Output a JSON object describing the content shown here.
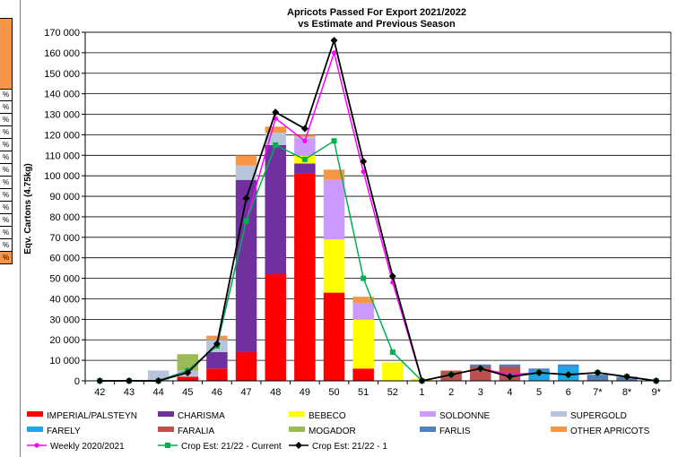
{
  "chart_data": {
    "type": "bar",
    "title": "Apricots Passed For Export 2021/2022",
    "subtitle": "vs Estimate and Previous Season",
    "ylabel": "Eqv. Cartons (4.75kg)",
    "xlabel": "",
    "ylim": [
      0,
      170000
    ],
    "ytick_step": 10000,
    "yticks": [
      "0",
      "10 000",
      "20 000",
      "30 000",
      "40 000",
      "50 000",
      "60 000",
      "70 000",
      "80 000",
      "90 000",
      "100 000",
      "110 000",
      "120 000",
      "130 000",
      "140 000",
      "150 000",
      "160 000",
      "170 000"
    ],
    "grid": true,
    "legend_position": "bottom",
    "categories": [
      "42",
      "43",
      "44",
      "45",
      "46",
      "47",
      "48",
      "49",
      "50",
      "51",
      "52",
      "1",
      "2",
      "3",
      "4",
      "5",
      "6",
      "7*",
      "8*",
      "9*"
    ],
    "stacked_series": [
      {
        "name": "IMPERIAL/PALSTEYN",
        "color": "#ff0000",
        "values": [
          0,
          0,
          0,
          2000,
          6000,
          14000,
          52000,
          101000,
          43000,
          6000,
          0,
          0,
          0,
          0,
          0,
          0,
          0,
          0,
          0,
          0
        ]
      },
      {
        "name": "CHARISMA",
        "color": "#7030a0",
        "values": [
          0,
          0,
          0,
          0,
          8000,
          84000,
          63000,
          5000,
          0,
          0,
          0,
          0,
          0,
          0,
          0,
          0,
          0,
          0,
          0,
          0
        ]
      },
      {
        "name": "BEBECO",
        "color": "#ffff00",
        "values": [
          0,
          0,
          0,
          0,
          0,
          0,
          0,
          4000,
          26000,
          24000,
          9000,
          1000,
          0,
          0,
          0,
          0,
          0,
          0,
          0,
          0
        ]
      },
      {
        "name": "SOLDONNE",
        "color": "#cc99ff",
        "values": [
          0,
          0,
          0,
          0,
          0,
          0,
          0,
          8000,
          29000,
          8000,
          0,
          0,
          0,
          0,
          0,
          0,
          0,
          0,
          0,
          0
        ]
      },
      {
        "name": "SUPERGOLD",
        "color": "#b7c4dc",
        "values": [
          0,
          0,
          5000,
          3000,
          6000,
          7000,
          6000,
          1000,
          0,
          0,
          0,
          0,
          0,
          0,
          0,
          0,
          0,
          0,
          0,
          0
        ]
      },
      {
        "name": "FARELY",
        "color": "#1ea7e6",
        "values": [
          0,
          0,
          0,
          0,
          0,
          0,
          0,
          0,
          0,
          0,
          0,
          0,
          0,
          0,
          0,
          5000,
          7000,
          0,
          0,
          0
        ]
      },
      {
        "name": "FARALIA",
        "color": "#c0504d",
        "values": [
          0,
          0,
          0,
          0,
          0,
          0,
          0,
          0,
          0,
          0,
          0,
          0,
          5000,
          7000,
          7000,
          0,
          0,
          0,
          0,
          0
        ]
      },
      {
        "name": "MOGADOR",
        "color": "#9bbb59",
        "values": [
          0,
          0,
          0,
          8000,
          0,
          0,
          0,
          0,
          0,
          0,
          0,
          0,
          0,
          0,
          0,
          0,
          0,
          0,
          0,
          0
        ]
      },
      {
        "name": "FARLIS",
        "color": "#4f81bd",
        "values": [
          0,
          0,
          0,
          0,
          0,
          0,
          0,
          0,
          0,
          0,
          0,
          0,
          0,
          1000,
          1000,
          1000,
          1000,
          3000,
          2000,
          0
        ]
      },
      {
        "name": "OTHER APRICOTS",
        "color": "#f79646",
        "values": [
          0,
          0,
          0,
          0,
          2000,
          5000,
          3000,
          1000,
          5000,
          3000,
          0,
          0,
          0,
          0,
          0,
          0,
          0,
          0,
          0,
          0
        ]
      }
    ],
    "line_series": [
      {
        "name": "Weekly 2020/2021",
        "color": "#ff00ff",
        "marker": "circle",
        "values": [
          0,
          0,
          0,
          5000,
          17000,
          78000,
          128000,
          117000,
          160000,
          102000,
          48000,
          0,
          3000,
          6000,
          3000,
          4000,
          3000,
          4000,
          2000,
          0
        ]
      },
      {
        "name": "Crop Est: 21/22 - Current",
        "color": "#00b050",
        "marker": "square",
        "values": [
          0,
          0,
          0,
          5000,
          17000,
          78000,
          115000,
          108000,
          117000,
          50000,
          14000,
          0,
          3000,
          6000,
          2000,
          4000,
          3000,
          4000,
          2000,
          0
        ]
      },
      {
        "name": "Crop Est: 21/22 - 1",
        "color": "#000000",
        "marker": "diamond",
        "values": [
          0,
          0,
          0,
          4000,
          18000,
          89000,
          131000,
          123000,
          166000,
          107000,
          51000,
          0,
          3000,
          6000,
          2000,
          4000,
          3000,
          4000,
          2000,
          0
        ]
      }
    ]
  },
  "legend_rows": [
    [
      "IMPERIAL/PALSTEYN",
      "CHARISMA",
      "BEBECO",
      "SOLDONNE",
      "SUPERGOLD"
    ],
    [
      "FARELY",
      "FARALIA",
      "MOGADOR",
      "FARLIS",
      "OTHER APRICOTS"
    ],
    [
      "Weekly 2020/2021",
      "Crop Est: 21/22 - Current",
      "Crop Est: 21/22 - 1"
    ]
  ],
  "left_strip_cells": [
    "%",
    "%",
    "%",
    "%",
    "%",
    "%",
    "%",
    "%",
    "%",
    "%",
    "%",
    "%",
    "%",
    "%"
  ]
}
